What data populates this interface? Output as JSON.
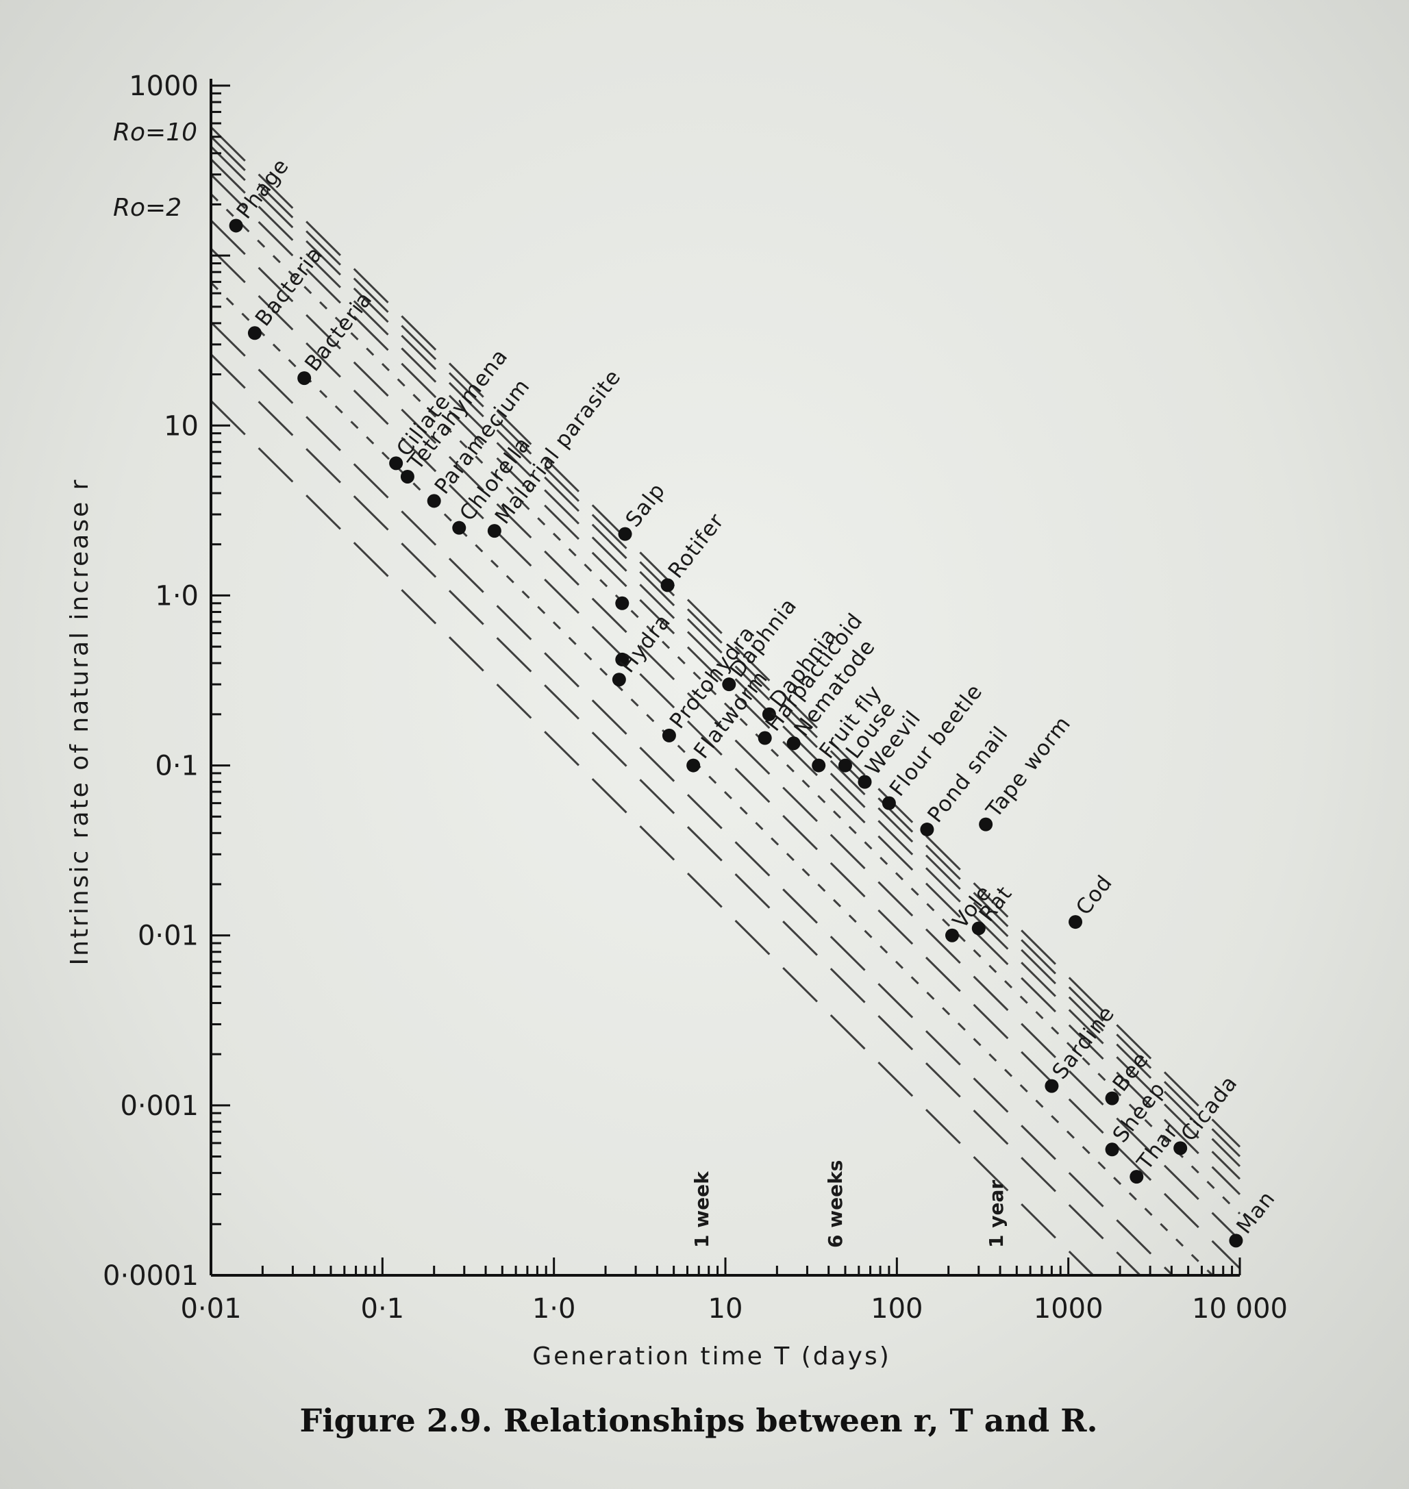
{
  "caption": "Figure 2.9. Relationships between r, T and R.",
  "chart_data": {
    "type": "scatter",
    "x_scale": "log",
    "y_scale": "log",
    "xlabel": "Generation time T (days)",
    "ylabel": "Intrinsic rate of natural increase r",
    "xlim": [
      0.01,
      10000
    ],
    "ylim": [
      0.0001,
      1000
    ],
    "x_ticks": [
      {
        "value": 0.01,
        "label": "0·01"
      },
      {
        "value": 0.1,
        "label": "0·1"
      },
      {
        "value": 1,
        "label": "1·0"
      },
      {
        "value": 10,
        "label": "10"
      },
      {
        "value": 100,
        "label": "100"
      },
      {
        "value": 1000,
        "label": "1000"
      },
      {
        "value": 10000,
        "label": "10 000"
      }
    ],
    "y_ticks": [
      {
        "value": 1000,
        "label": "1000"
      },
      {
        "value": 10,
        "label": "10"
      },
      {
        "value": 1,
        "label": "1·0"
      },
      {
        "value": 0.1,
        "label": "0·1"
      },
      {
        "value": 0.01,
        "label": "0·01"
      },
      {
        "value": 0.001,
        "label": "0·001"
      },
      {
        "value": 0.0001,
        "label": "0·0001"
      }
    ],
    "time_markers": [
      {
        "value": 7,
        "label": "1 week"
      },
      {
        "value": 42,
        "label": "6 weeks"
      },
      {
        "value": 365,
        "label": "1 year"
      }
    ],
    "reference_lines": [
      {
        "label": "Ro=10",
        "R": 10
      },
      {
        "label": "Ro=2",
        "R": 2
      }
    ],
    "points": [
      {
        "name": "Phage",
        "x": 0.014,
        "y": 150
      },
      {
        "name": "Bacteria",
        "x": 0.018,
        "y": 35
      },
      {
        "name": "Bacteria",
        "x": 0.035,
        "y": 19
      },
      {
        "name": "Ciliate",
        "x": 0.12,
        "y": 6
      },
      {
        "name": "Tetrahymena",
        "x": 0.14,
        "y": 5
      },
      {
        "name": "Paramecium",
        "x": 0.2,
        "y": 3.6
      },
      {
        "name": "Chlorella",
        "x": 0.28,
        "y": 2.5
      },
      {
        "name": "Malarial parasite",
        "x": 0.45,
        "y": 2.4
      },
      {
        "name": "Salp",
        "x": 2.6,
        "y": 2.3
      },
      {
        "name": "",
        "x": 2.5,
        "y": 0.9
      },
      {
        "name": "",
        "x": 2.5,
        "y": 0.42
      },
      {
        "name": "Hydra",
        "x": 2.4,
        "y": 0.32
      },
      {
        "name": "Rotifer",
        "x": 4.6,
        "y": 1.15
      },
      {
        "name": "Protohydra",
        "x": 4.7,
        "y": 0.15
      },
      {
        "name": "Flatworm",
        "x": 6.5,
        "y": 0.1
      },
      {
        "name": "Daphnia",
        "x": 10.5,
        "y": 0.3
      },
      {
        "name": "Daphnia",
        "x": 18,
        "y": 0.2
      },
      {
        "name": "Harpacticoid",
        "x": 17,
        "y": 0.145
      },
      {
        "name": "Nematode",
        "x": 25,
        "y": 0.135
      },
      {
        "name": "Fruit fly",
        "x": 35,
        "y": 0.1
      },
      {
        "name": "Louse",
        "x": 50,
        "y": 0.1
      },
      {
        "name": "Weevil",
        "x": 65,
        "y": 0.08
      },
      {
        "name": "Flour beetle",
        "x": 90,
        "y": 0.06
      },
      {
        "name": "Pond snail",
        "x": 150,
        "y": 0.042
      },
      {
        "name": "Tape worm",
        "x": 330,
        "y": 0.045
      },
      {
        "name": "Vole",
        "x": 210,
        "y": 0.01
      },
      {
        "name": "Rat",
        "x": 300,
        "y": 0.011
      },
      {
        "name": "Cod",
        "x": 1100,
        "y": 0.012
      },
      {
        "name": "Sardine",
        "x": 800,
        "y": 0.0013
      },
      {
        "name": "Bee",
        "x": 1800,
        "y": 0.0011
      },
      {
        "name": "Sheep",
        "x": 1800,
        "y": 0.00055
      },
      {
        "name": "Thar",
        "x": 2500,
        "y": 0.00038
      },
      {
        "name": "Cicada",
        "x": 4500,
        "y": 0.00056
      },
      {
        "name": "Man",
        "x": 9500,
        "y": 0.00016
      }
    ]
  }
}
